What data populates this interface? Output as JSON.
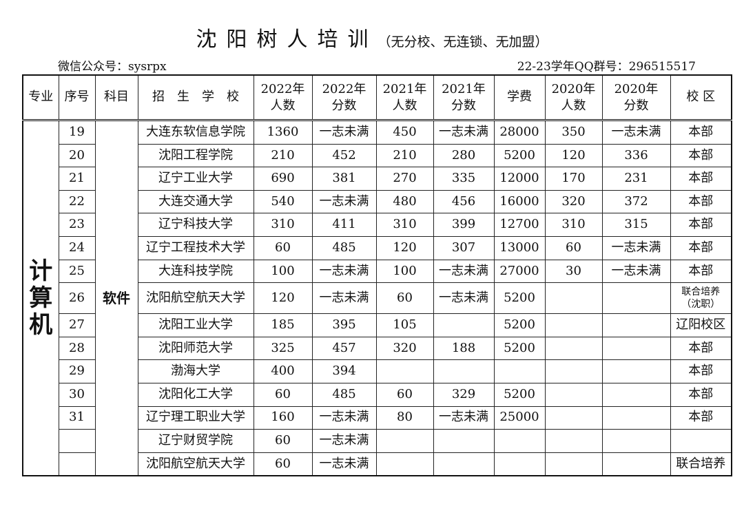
{
  "header": {
    "title": "沈阳树人培训",
    "subtitle": "（无分校、无连锁、无加盟）",
    "wechat": "微信公众号：sysrpx",
    "qq": "22-23学年QQ群号：296515517"
  },
  "table": {
    "columns": [
      "专业",
      "序号",
      "科目",
      "招　生　学　校",
      "2022年人数",
      "2022年分数",
      "2021年人数",
      "2021年分数",
      "学费",
      "2020年人数",
      "2020年分数",
      "校 区"
    ],
    "major": "计算机",
    "subject": "软件",
    "rows": [
      [
        "19",
        "大连东软信息学院",
        "1360",
        "一志未满",
        "450",
        "一志未满",
        "28000",
        "350",
        "一志未满",
        "本部"
      ],
      [
        "20",
        "沈阳工程学院",
        "210",
        "452",
        "210",
        "280",
        "5200",
        "120",
        "336",
        "本部"
      ],
      [
        "21",
        "辽宁工业大学",
        "690",
        "381",
        "270",
        "335",
        "12000",
        "170",
        "231",
        "本部"
      ],
      [
        "22",
        "大连交通大学",
        "540",
        "一志未满",
        "480",
        "456",
        "16000",
        "320",
        "372",
        "本部"
      ],
      [
        "23",
        "辽宁科技大学",
        "310",
        "411",
        "310",
        "399",
        "12700",
        "310",
        "315",
        "本部"
      ],
      [
        "24",
        "辽宁工程技术大学",
        "60",
        "485",
        "120",
        "307",
        "13000",
        "60",
        "一志未满",
        "本部"
      ],
      [
        "25",
        "大连科技学院",
        "100",
        "一志未满",
        "100",
        "一志未满",
        "27000",
        "30",
        "一志未满",
        "本部"
      ],
      [
        "26",
        "沈阳航空航天大学",
        "120",
        "一志未满",
        "60",
        "一志未满",
        "5200",
        "",
        "",
        "联合培养（沈职）"
      ],
      [
        "27",
        "沈阳工业大学",
        "185",
        "395",
        "105",
        "",
        "5200",
        "",
        "",
        "辽阳校区"
      ],
      [
        "28",
        "沈阳师范大学",
        "325",
        "457",
        "320",
        "188",
        "5200",
        "",
        "",
        "本部"
      ],
      [
        "29",
        "渤海大学",
        "400",
        "394",
        "",
        "",
        "",
        "",
        "",
        "本部"
      ],
      [
        "30",
        "沈阳化工大学",
        "60",
        "485",
        "60",
        "329",
        "5200",
        "",
        "",
        "本部"
      ],
      [
        "31",
        "辽宁理工职业大学",
        "160",
        "一志未满",
        "80",
        "一志未满",
        "25000",
        "",
        "",
        "本部"
      ],
      [
        "",
        "辽宁财贸学院",
        "60",
        "一志未满",
        "",
        "",
        "",
        "",
        "",
        ""
      ],
      [
        "",
        "沈阳航空航天大学",
        "60",
        "一志未满",
        "",
        "",
        "",
        "",
        "",
        "联合培养"
      ]
    ]
  }
}
